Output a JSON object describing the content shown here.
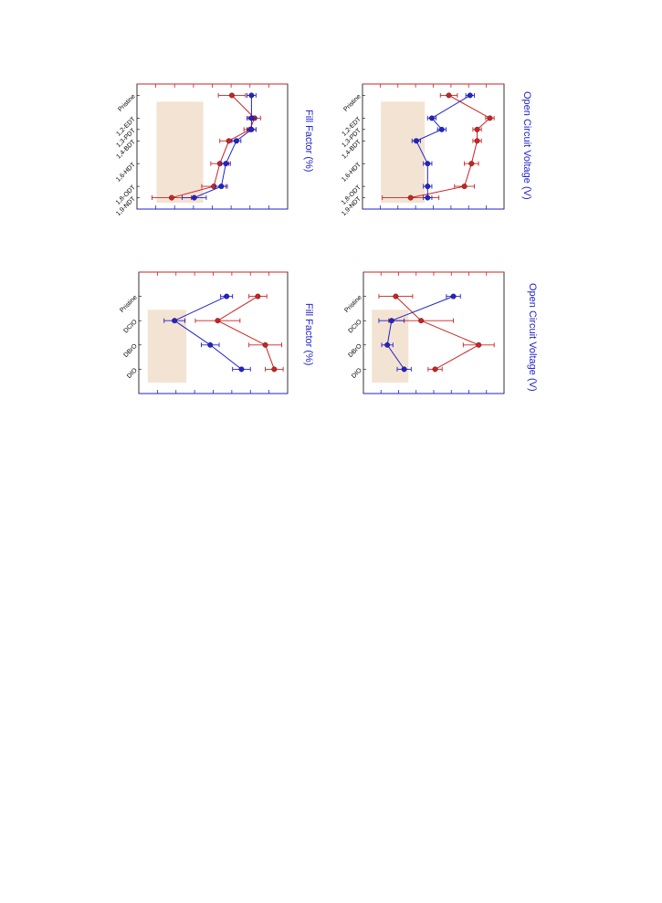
{
  "chart_data": [
    {
      "id": "p1",
      "type": "line",
      "categories": [
        "Pristine",
        "1,2-EDT",
        "1,3-PDT",
        "1,4-BDT",
        "1,6-HDT",
        "1,8-ODT",
        "1,9-NDT"
      ],
      "x": [
        0,
        2,
        3,
        4,
        6,
        8,
        9
      ],
      "xlim": [
        -1,
        10
      ],
      "ylim": [
        0,
        10
      ],
      "highlight": [
        1.3,
        4.4
      ],
      "ylabel": "Fill Factor (%)",
      "series": [
        {
          "color": "#cc2222",
          "values": [
            6.3,
            7.8,
            7.5,
            6.1,
            5.5,
            5.1,
            2.3
          ],
          "err": [
            0.9,
            0.4,
            0.4,
            0.6,
            0.6,
            0.8,
            1.3
          ]
        },
        {
          "color": "#2222cc",
          "values": [
            7.6,
            7.6,
            7.6,
            6.6,
            5.9,
            5.6,
            3.8
          ],
          "err": [
            0.3,
            0.3,
            0.3,
            0.3,
            0.3,
            0.4,
            0.8
          ]
        }
      ]
    },
    {
      "id": "p2",
      "type": "line",
      "categories": [
        "Pristine",
        "1,2-EDT",
        "1,3-PDT",
        "1,4-BDT",
        "1,6-HDT",
        "1,8-ODT",
        "1,9-NDT"
      ],
      "x": [
        0,
        2,
        3,
        4,
        6,
        8,
        9
      ],
      "xlim": [
        -1,
        10
      ],
      "ylim": [
        0,
        10
      ],
      "highlight": [
        1.3,
        4.4
      ],
      "ylabel": "Open Circuit Voltage (V)",
      "series": [
        {
          "color": "#cc2222",
          "values": [
            6.1,
            9.0,
            8.1,
            8.1,
            7.7,
            7.2,
            3.4
          ],
          "err": [
            0.6,
            0.3,
            0.3,
            0.3,
            0.5,
            0.7,
            2.0
          ]
        },
        {
          "color": "#2222cc",
          "values": [
            7.6,
            4.9,
            5.6,
            3.8,
            4.6,
            4.6,
            4.6
          ],
          "err": [
            0.3,
            0.3,
            0.3,
            0.3,
            0.3,
            0.3,
            0.3
          ]
        }
      ]
    },
    {
      "id": "p3",
      "type": "line",
      "categories": [
        "Pristine",
        "DCIO",
        "DBrO",
        "DIO"
      ],
      "x": [
        0,
        1,
        2,
        3
      ],
      "xlim": [
        -1,
        4
      ],
      "ylim": [
        0,
        10
      ],
      "highlight": [
        0.6,
        3.2
      ],
      "ylabel": "Fill Factor (%)",
      "series": [
        {
          "color": "#cc2222",
          "values": [
            8.0,
            5.3,
            8.5,
            9.1
          ],
          "err": [
            0.6,
            1.5,
            1.1,
            0.6
          ]
        },
        {
          "color": "#2222cc",
          "values": [
            5.9,
            2.4,
            4.8,
            6.9
          ],
          "err": [
            0.4,
            0.7,
            0.6,
            0.6
          ]
        }
      ]
    },
    {
      "id": "p4",
      "type": "line",
      "categories": [
        "Pristine",
        "DCIO",
        "DBrO",
        "DIO"
      ],
      "x": [
        0,
        1,
        2,
        3
      ],
      "xlim": [
        -1,
        4
      ],
      "ylim": [
        0,
        10
      ],
      "highlight": [
        0.6,
        3.2
      ],
      "ylabel": "Open Circuit Voltage (V)",
      "series": [
        {
          "color": "#cc2222",
          "values": [
            2.3,
            4.1,
            8.2,
            5.1
          ],
          "err": [
            1.2,
            2.3,
            1.1,
            0.5
          ]
        },
        {
          "color": "#2222cc",
          "values": [
            6.4,
            2.0,
            1.7,
            2.9
          ],
          "err": [
            0.5,
            0.9,
            0.4,
            0.5
          ]
        }
      ]
    }
  ],
  "colors": {
    "left_axis": "#cc2222",
    "right_axis": "#2222cc",
    "highlight": "#f3e3d3"
  }
}
